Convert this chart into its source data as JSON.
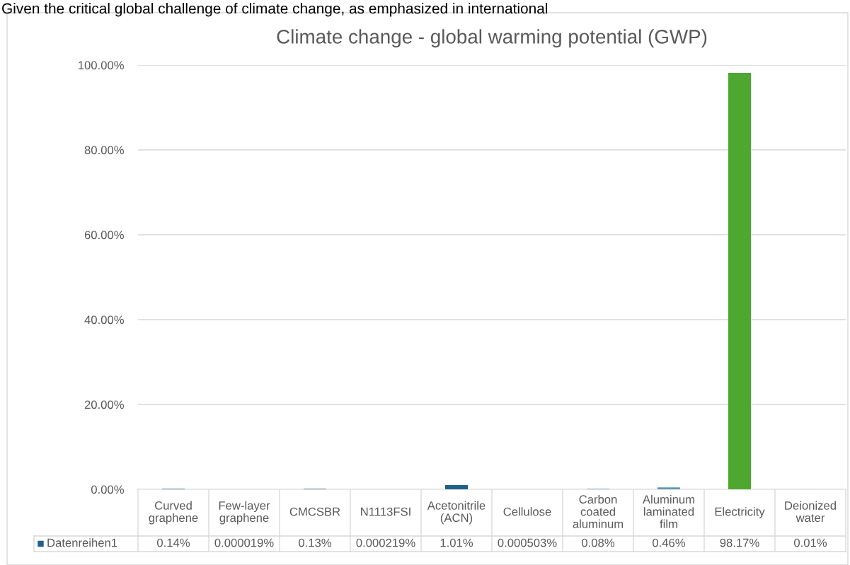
{
  "chart_data": {
    "type": "bar",
    "title": "Climate change - global warming potential (GWP)",
    "annotations": [
      "Given the critical global challenge of climate change, as emphasized in international"
    ],
    "categories": [
      "Curved graphene",
      "Few-layer graphene",
      "CMCSBR",
      "N1113FSI",
      "Acetonitrile (ACN)",
      "Cellulose",
      "Carbon coated aluminum",
      "Aluminum laminated film",
      "Electricity",
      "Deionized water"
    ],
    "series": [
      {
        "name": "Datenreihen1",
        "color": "#1f6088",
        "colors": [
          "#1f6088",
          "#1f6088",
          "#1f6088",
          "#1f6088",
          "#1f6088",
          "#1f6088",
          "#1f6088",
          "#5b9bb5",
          "#4ea72e",
          "#1f6088"
        ],
        "values": [
          0.14,
          1.9e-05,
          0.13,
          0.000219,
          1.01,
          0.000503,
          0.08,
          0.46,
          98.17,
          0.01
        ],
        "value_labels": [
          "0.14%",
          "0.000019%",
          "0.13%",
          "0.000219%",
          "1.01%",
          "0.000503%",
          "0.08%",
          "0.46%",
          "98.17%",
          "0.01%"
        ]
      }
    ],
    "ylim": [
      0,
      100
    ],
    "yticks": [
      {
        "value": 0,
        "label": "0.00%"
      },
      {
        "value": 20,
        "label": "20.00%"
      },
      {
        "value": 40,
        "label": "40.00%"
      },
      {
        "value": 60,
        "label": "60.00%"
      },
      {
        "value": 80,
        "label": "80.00%"
      },
      {
        "value": 100,
        "label": "100.00%"
      }
    ],
    "grid": "y",
    "legend": "bottom left"
  }
}
